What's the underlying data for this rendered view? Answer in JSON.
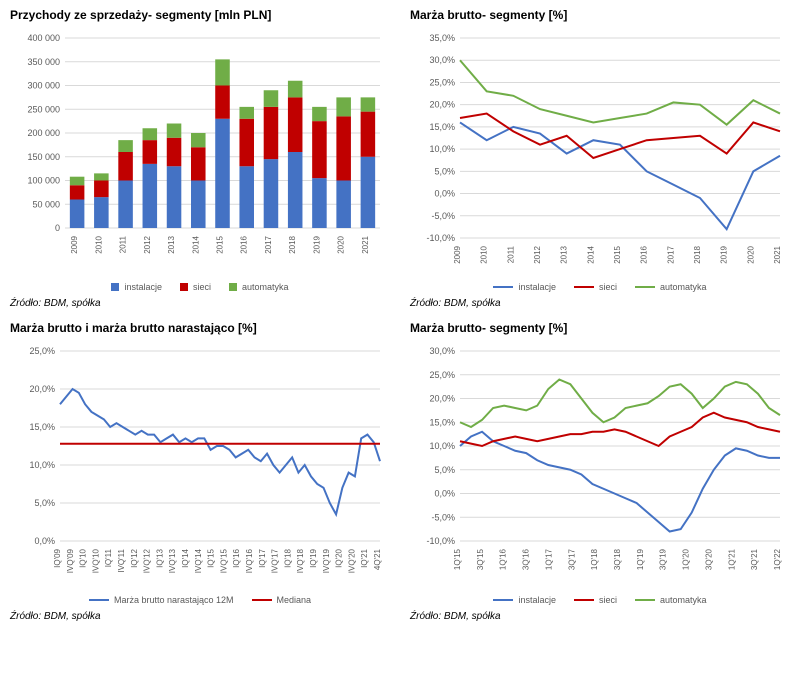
{
  "source_text": "Źródło: BDM, spółka",
  "colors": {
    "blue": "#4472c4",
    "red": "#c00000",
    "green": "#70ad47",
    "grid": "#d9d9d9",
    "text": "#595959"
  },
  "chart1": {
    "type": "stacked-bar",
    "title": "Przychody ze sprzedaży- segmenty [mln PLN]",
    "categories": [
      "2009",
      "2010",
      "2011",
      "2012",
      "2013",
      "2014",
      "2015",
      "2016",
      "2017",
      "2018",
      "2019",
      "2020",
      "2021"
    ],
    "series": [
      {
        "name": "instalacje",
        "color": "#4472c4",
        "values": [
          60000,
          65000,
          100000,
          135000,
          130000,
          100000,
          230000,
          130000,
          145000,
          160000,
          105000,
          100000,
          150000
        ]
      },
      {
        "name": "sieci",
        "color": "#c00000",
        "values": [
          30000,
          35000,
          60000,
          50000,
          60000,
          70000,
          70000,
          100000,
          110000,
          115000,
          120000,
          135000,
          95000
        ]
      },
      {
        "name": "automatyka",
        "color": "#70ad47",
        "values": [
          18000,
          15000,
          25000,
          25000,
          30000,
          30000,
          55000,
          25000,
          35000,
          35000,
          30000,
          40000,
          30000
        ]
      }
    ],
    "ylim": [
      0,
      400000
    ],
    "ytick_step": 50000
  },
  "chart2": {
    "type": "line",
    "title": "Marża brutto- segmenty [%]",
    "categories": [
      "2009",
      "2010",
      "2011",
      "2012",
      "2013",
      "2014",
      "2015",
      "2016",
      "2017",
      "2018",
      "2019",
      "2020",
      "2021"
    ],
    "series": [
      {
        "name": "instalacje",
        "color": "#4472c4",
        "values": [
          16,
          12,
          15,
          13.5,
          9,
          12,
          11,
          5,
          2,
          -1,
          -8,
          5,
          8.5
        ]
      },
      {
        "name": "sieci",
        "color": "#c00000",
        "values": [
          17,
          18,
          14,
          11,
          13,
          8,
          10,
          12,
          12.5,
          13,
          9,
          16,
          14
        ]
      },
      {
        "name": "automatyka",
        "color": "#70ad47",
        "values": [
          30,
          23,
          22,
          19,
          17.5,
          16,
          17,
          18,
          20.5,
          20,
          15.5,
          21,
          18
        ]
      }
    ],
    "ylim": [
      -10,
      35
    ],
    "ytick_step": 5,
    "ysuffix": ",0%"
  },
  "chart3": {
    "type": "line",
    "title": "Marża brutto i marża brutto narastająco [%]",
    "categories": [
      "IQ'09",
      "IVQ'09",
      "IQ'10",
      "IVQ'10",
      "IQ'11",
      "IVQ'11",
      "IQ'12",
      "IVQ'12",
      "IQ'13",
      "IVQ'13",
      "IQ'14",
      "IVQ'14",
      "IQ'15",
      "IVQ'15",
      "IQ'16",
      "IVQ'16",
      "IQ'17",
      "IVQ'17",
      "IQ'18",
      "IVQ'18",
      "IQ'19",
      "IVQ'19",
      "IQ'20",
      "IVQ'20",
      "IQ'21",
      "4Q'21"
    ],
    "series": [
      {
        "name": "Marża brutto narastająco 12M",
        "color": "#4472c4",
        "values_dense": [
          18,
          19,
          20,
          19.5,
          18,
          17,
          16.5,
          16,
          15,
          15.5,
          15,
          14.5,
          14,
          14.5,
          14,
          14,
          13,
          13.5,
          14,
          13,
          13.5,
          13,
          13.5,
          13.5,
          12,
          12.5,
          12.5,
          12,
          11,
          11.5,
          12,
          11,
          10.5,
          11.5,
          10,
          9,
          10,
          11,
          9,
          10,
          8.5,
          7.5,
          7,
          5,
          3.5,
          7,
          9,
          8.5,
          13.5,
          14,
          13,
          10.5
        ]
      },
      {
        "name": "Mediana",
        "color": "#c00000",
        "values_flat": 12.8
      }
    ],
    "ylim": [
      0,
      25
    ],
    "ytick_step": 5,
    "ysuffix": ",0%",
    "xshow_idx": [
      0,
      1,
      2,
      3,
      4,
      5,
      6,
      7,
      8,
      9,
      10,
      11,
      12,
      13,
      14,
      15,
      16,
      17,
      18,
      19,
      20,
      21,
      22,
      23,
      24,
      25
    ]
  },
  "chart4": {
    "type": "line",
    "title": "Marża brutto- segmenty [%]",
    "categories": [
      "1Q'15",
      "3Q'15",
      "1Q'16",
      "3Q'16",
      "1Q'17",
      "3Q'17",
      "1Q'18",
      "3Q'18",
      "1Q'19",
      "3Q'19",
      "1Q'20",
      "3Q'20",
      "1Q'21",
      "3Q'21",
      "1Q'22"
    ],
    "series": [
      {
        "name": "instalacje",
        "color": "#4472c4",
        "values_dense": [
          10,
          12,
          13,
          11,
          10,
          9,
          8.5,
          7,
          6,
          5.5,
          5,
          4,
          2,
          1,
          0,
          -1,
          -2,
          -4,
          -6,
          -8,
          -7.5,
          -4,
          1,
          5,
          8,
          9.5,
          9,
          8,
          7.5,
          7.5
        ]
      },
      {
        "name": "sieci",
        "color": "#c00000",
        "values_dense": [
          11,
          10.5,
          10,
          11,
          11.5,
          12,
          11.5,
          11,
          11.5,
          12,
          12.5,
          12.5,
          13,
          13,
          13.5,
          13,
          12,
          11,
          10,
          12,
          13,
          14,
          16,
          17,
          16,
          15.5,
          15,
          14,
          13.5,
          13
        ]
      },
      {
        "name": "automatyka",
        "color": "#70ad47",
        "values_dense": [
          15,
          14,
          15.5,
          18,
          18.5,
          18,
          17.5,
          18.5,
          22,
          24,
          23,
          20,
          17,
          15,
          16,
          18,
          18.5,
          19,
          20.5,
          22.5,
          23,
          21,
          18,
          20,
          22.5,
          23.5,
          23,
          21,
          18,
          16.5
        ]
      }
    ],
    "ylim": [
      -10,
      30
    ],
    "ytick_step": 5,
    "ysuffix": ",0%"
  }
}
